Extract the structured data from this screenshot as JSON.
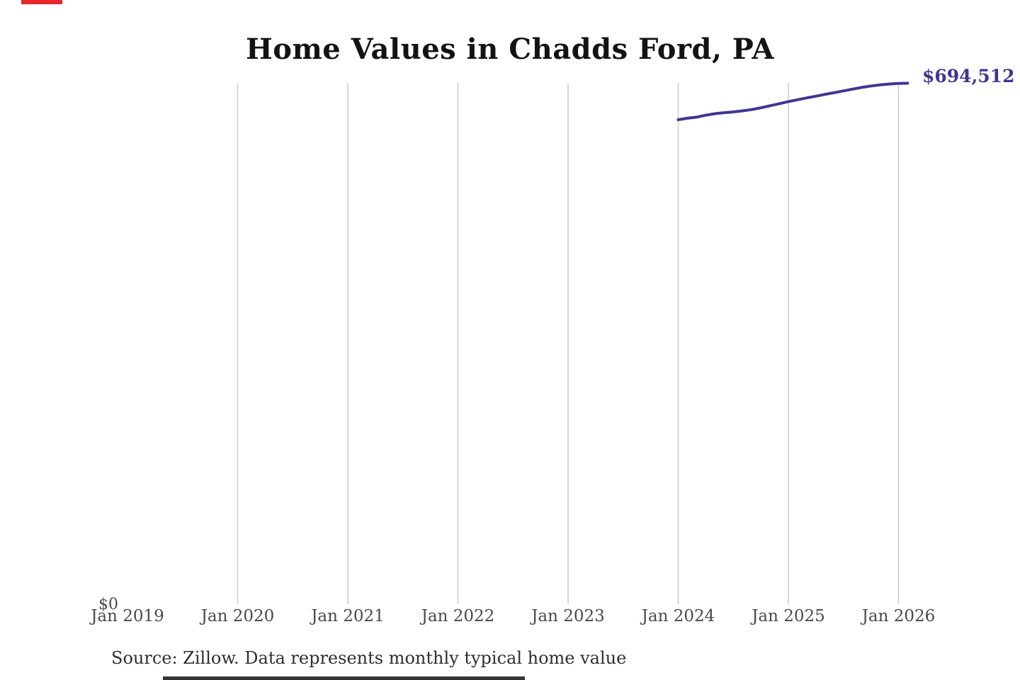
{
  "title": "Home Values in Chadds Ford, PA",
  "end_value_label": "$694,512",
  "y_axis": {
    "zero_label": "$0"
  },
  "x_axis": {
    "tick_labels": [
      "Jan 2019",
      "Jan 2020",
      "Jan 2021",
      "Jan 2022",
      "Jan 2023",
      "Jan 2024",
      "Jan 2025",
      "Jan 2026"
    ],
    "gridline_ticks": [
      "Jan 2020",
      "Jan 2021",
      "Jan 2022",
      "Jan 2023",
      "Jan 2024",
      "Jan 2025",
      "Jan 2026"
    ]
  },
  "source_note": "Source: Zillow. Data represents monthly typical home value",
  "colors": {
    "line": "#3e3695",
    "end_label": "#3e3695",
    "gridline": "#cccccc",
    "title": "#131313",
    "axis_text": "#4a4a4a",
    "source_text": "#2e2e2e",
    "top_left_mark": "#e5262b",
    "bottom_cutoff_bar": "#333333"
  },
  "chart_data": {
    "type": "line",
    "title": "Home Values in Chadds Ford, PA",
    "series_name": "Monthly typical home value",
    "x": [
      "2024-01",
      "2024-02",
      "2024-03",
      "2024-04",
      "2024-05",
      "2024-06",
      "2024-07",
      "2024-08",
      "2024-09",
      "2024-10",
      "2024-11",
      "2024-12",
      "2025-01",
      "2025-02",
      "2025-03",
      "2025-04",
      "2025-05",
      "2025-06",
      "2025-07",
      "2025-08",
      "2025-09",
      "2025-10",
      "2025-11",
      "2025-12",
      "2026-01",
      "2026-02"
    ],
    "values": [
      646000,
      648000,
      649400,
      652000,
      654000,
      655300,
      656400,
      657800,
      659500,
      661800,
      664600,
      667300,
      670100,
      672600,
      675000,
      677300,
      679700,
      682000,
      684300,
      686700,
      689000,
      690800,
      692300,
      693500,
      694200,
      694512
    ],
    "final_value": 694512,
    "end_annotation": "$694,512",
    "xlabel": "",
    "ylabel": "",
    "xlim_years": [
      2019,
      2026
    ],
    "ylim": [
      0,
      695000
    ],
    "grid": "vertical-only",
    "legend": "none"
  }
}
